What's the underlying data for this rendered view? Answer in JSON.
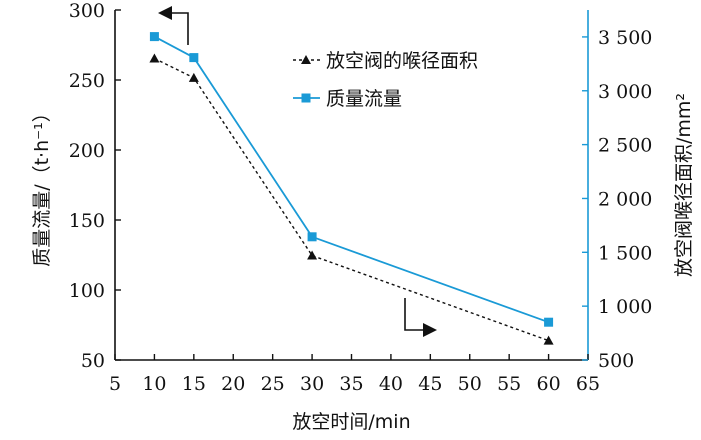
{
  "chart_data": {
    "type": "line",
    "xlabel": "放空时间/min",
    "ylabel_left": "质量流量/（t·h⁻¹）",
    "ylabel_right": "放空阀喉径面积/mm²",
    "xlim": [
      5,
      65
    ],
    "x_ticks": [
      "5",
      "10",
      "15",
      "20",
      "25",
      "30",
      "35",
      "40",
      "45",
      "50",
      "55",
      "60",
      "65"
    ],
    "ylim_left": [
      50,
      300
    ],
    "y_left_ticks": [
      "50",
      "100",
      "150",
      "200",
      "250",
      "300"
    ],
    "ylim_right": [
      500,
      3750
    ],
    "y_right_ticks": [
      "500",
      "1 000",
      "1 500",
      "2 000",
      "2 500",
      "3 000",
      "3 500"
    ],
    "grid": false,
    "legend_position": "top-right",
    "series": [
      {
        "name": "放空阀的喉径面积",
        "axis": "right",
        "color": "#111111",
        "line_style": "dashed",
        "marker": "triangle",
        "x": [
          10,
          15,
          30,
          60
        ],
        "y": [
          3300,
          3120,
          1470,
          680
        ]
      },
      {
        "name": "质量流量",
        "axis": "left",
        "color": "#1a9ad6",
        "line_style": "solid",
        "marker": "square",
        "x": [
          10,
          15,
          30,
          60
        ],
        "y": [
          281,
          266,
          138,
          77
        ]
      }
    ]
  }
}
